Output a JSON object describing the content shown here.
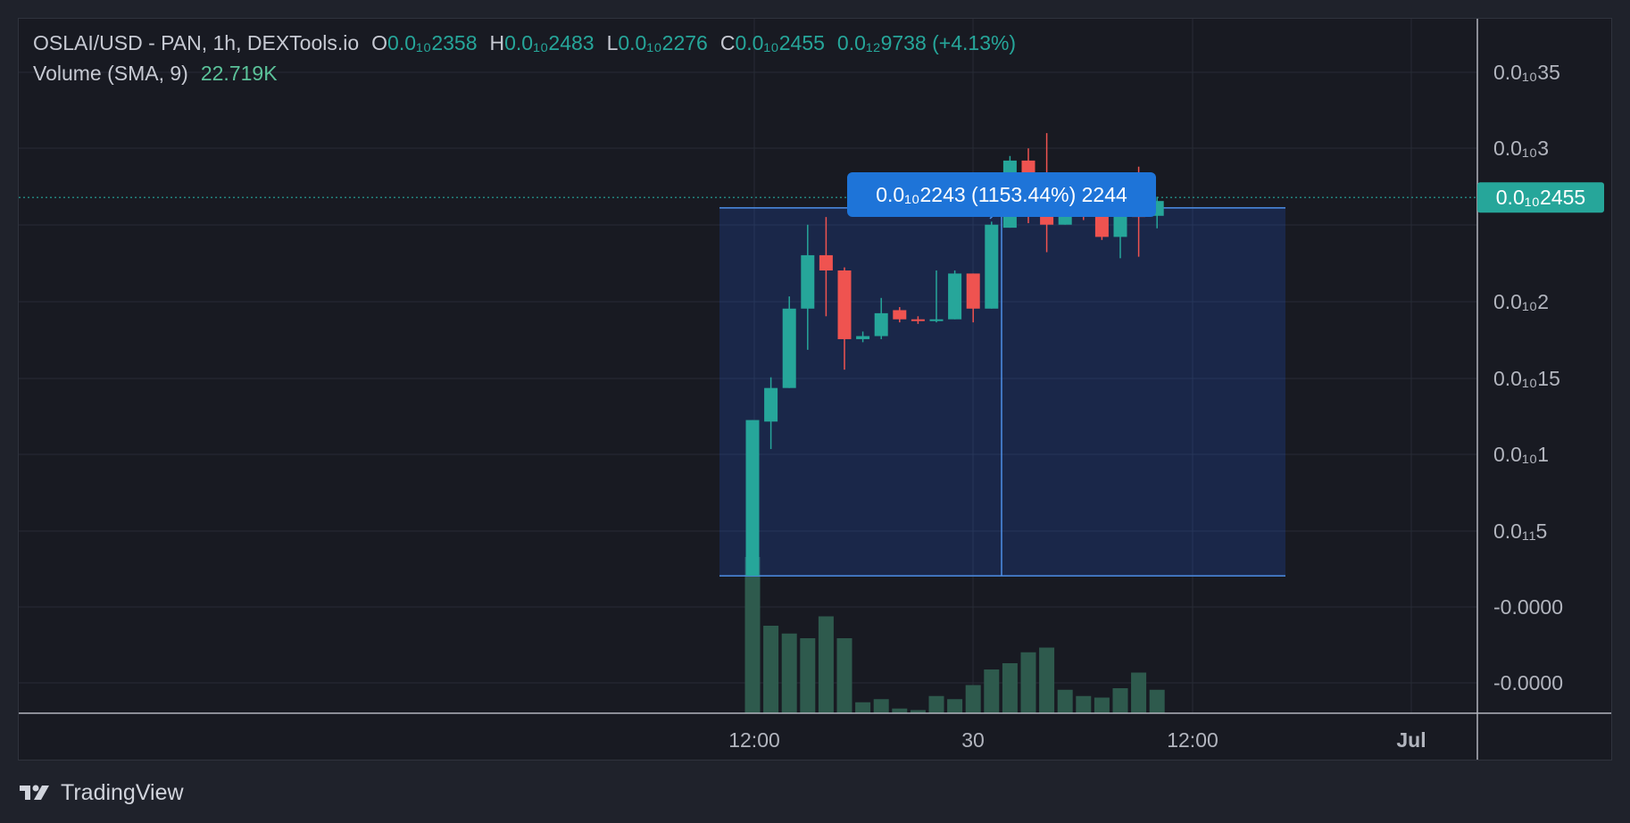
{
  "header": {
    "symbol": "OSLAI/USD - PAN, 1h, DEXTools.io",
    "o_label": "O",
    "o_value": "0.0₁₀2358",
    "h_label": "H",
    "h_value": "0.0₁₀2483",
    "l_label": "L",
    "l_value": "0.0₁₀2276",
    "c_label": "C",
    "c_value": "0.0₁₀2455",
    "change": "0.0₁₂9738 (+4.13%)",
    "volume_label": "Volume (SMA, 9)",
    "volume_value": "22.719K"
  },
  "measure_tooltip": "0.0₁₀2243 (1153.44%) 2244",
  "price_badge": "0.0₁₀2455",
  "footer": {
    "brand": "TradingView"
  },
  "colors": {
    "up": "#26a69a",
    "down": "#ef5350",
    "volume": "#2e5a4d",
    "measure": "#4d8fe8",
    "badge": "#26a69a",
    "tooltip": "#1e74d8"
  },
  "chart_data": {
    "type": "candlestick",
    "timeframe": "1h",
    "y_ticks": [
      "0.0₁₀35",
      "0.0₁₀3",
      "0.0₁₀2",
      "0.0₁₀15",
      "0.0₁₀1",
      "0.0₁₁5",
      "-0.0000",
      "-0.0000"
    ],
    "x_ticks": [
      "12:00",
      "30",
      "12:00",
      "Jul"
    ],
    "ylim_1e10": [
      -0.53,
      0.38
    ],
    "last_price_1e10": 0.2455,
    "candles": [
      {
        "o": 0.0,
        "h": 0.102,
        "l": 0.0,
        "c": 0.102,
        "v": 100
      },
      {
        "o": 0.101,
        "h": 0.13,
        "l": 0.083,
        "c": 0.123,
        "v": 56
      },
      {
        "o": 0.123,
        "h": 0.183,
        "l": 0.123,
        "c": 0.175,
        "v": 51
      },
      {
        "o": 0.175,
        "h": 0.23,
        "l": 0.148,
        "c": 0.21,
        "v": 48
      },
      {
        "o": 0.21,
        "h": 0.235,
        "l": 0.17,
        "c": 0.2,
        "v": 62
      },
      {
        "o": 0.2,
        "h": 0.202,
        "l": 0.135,
        "c": 0.155,
        "v": 48
      },
      {
        "o": 0.155,
        "h": 0.16,
        "l": 0.153,
        "c": 0.157,
        "v": 7
      },
      {
        "o": 0.157,
        "h": 0.182,
        "l": 0.155,
        "c": 0.172,
        "v": 9
      },
      {
        "o": 0.174,
        "h": 0.176,
        "l": 0.166,
        "c": 0.168,
        "v": 3
      },
      {
        "o": 0.168,
        "h": 0.17,
        "l": 0.165,
        "c": 0.167,
        "v": 2
      },
      {
        "o": 0.167,
        "h": 0.2,
        "l": 0.166,
        "c": 0.168,
        "v": 11
      },
      {
        "o": 0.168,
        "h": 0.2,
        "l": 0.168,
        "c": 0.198,
        "v": 9
      },
      {
        "o": 0.198,
        "h": 0.198,
        "l": 0.166,
        "c": 0.175,
        "v": 18
      },
      {
        "o": 0.175,
        "h": 0.232,
        "l": 0.175,
        "c": 0.23,
        "v": 28
      },
      {
        "o": 0.228,
        "h": 0.275,
        "l": 0.228,
        "c": 0.272,
        "v": 32
      },
      {
        "o": 0.272,
        "h": 0.28,
        "l": 0.231,
        "c": 0.253,
        "v": 39
      },
      {
        "o": 0.253,
        "h": 0.29,
        "l": 0.212,
        "c": 0.23,
        "v": 42
      },
      {
        "o": 0.23,
        "h": 0.253,
        "l": 0.23,
        "c": 0.25,
        "v": 15
      },
      {
        "o": 0.25,
        "h": 0.26,
        "l": 0.233,
        "c": 0.238,
        "v": 11
      },
      {
        "o": 0.238,
        "h": 0.24,
        "l": 0.22,
        "c": 0.222,
        "v": 10
      },
      {
        "o": 0.222,
        "h": 0.245,
        "l": 0.208,
        "c": 0.243,
        "v": 16
      },
      {
        "o": 0.243,
        "h": 0.268,
        "l": 0.209,
        "c": 0.235,
        "v": 26
      },
      {
        "o": 0.2358,
        "h": 0.2483,
        "l": 0.2276,
        "c": 0.2455,
        "v": 15
      }
    ]
  }
}
